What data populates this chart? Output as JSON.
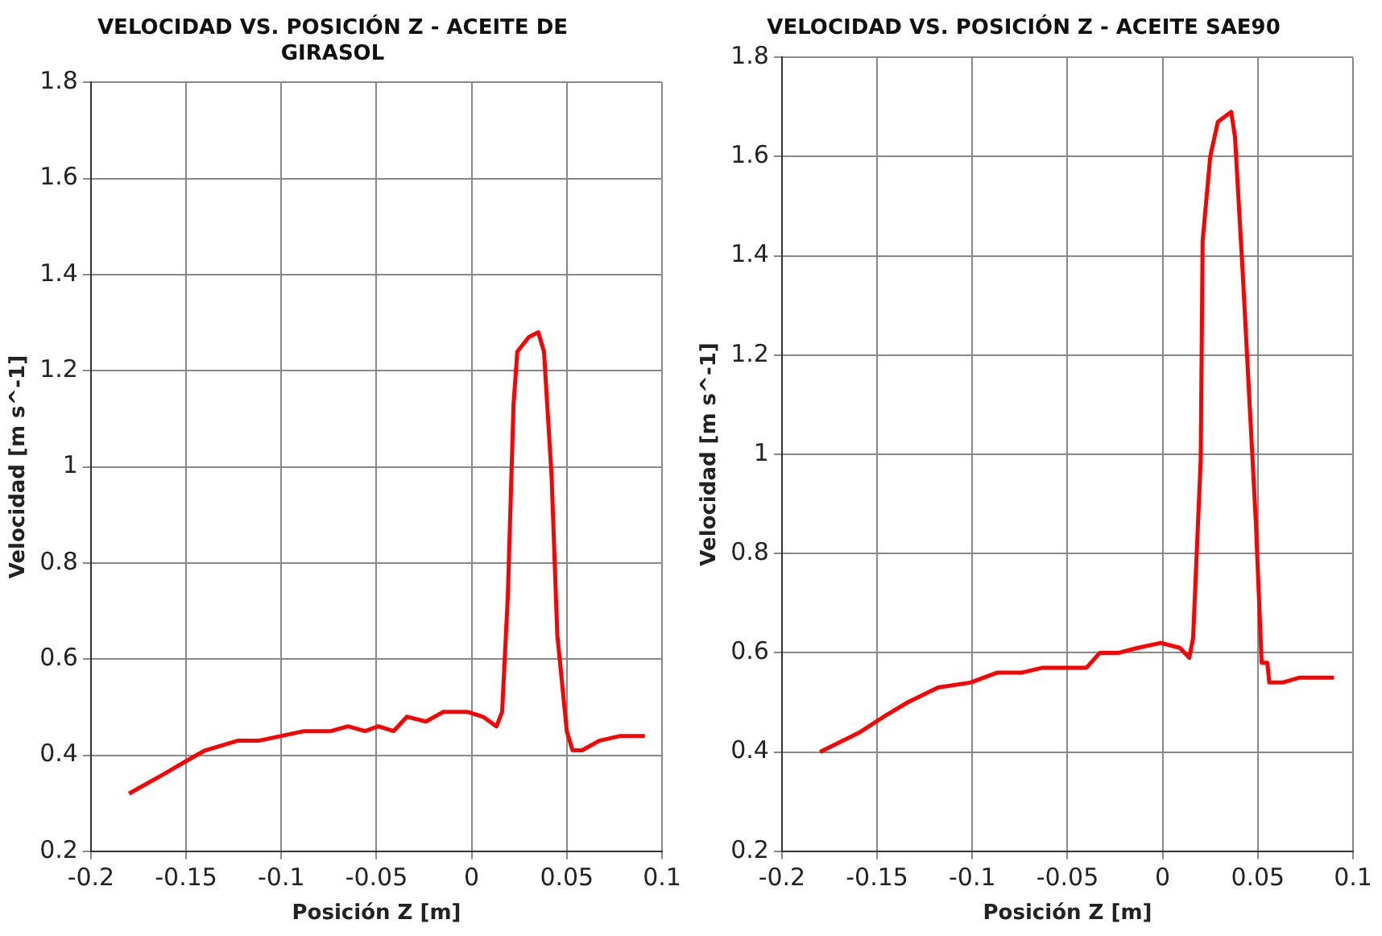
{
  "chart_data": [
    {
      "type": "line",
      "title": "VELOCIDAD VS. POSICIÓN Z - ACEITE DE GIRASOL",
      "xlabel": "Posición Z [m]",
      "ylabel": "Velocidad [m s^-1]",
      "xlim": [
        -0.2,
        0.1
      ],
      "xticks": [
        -0.2,
        -0.15,
        -0.1,
        -0.05,
        0,
        0.05,
        0.1
      ],
      "ylim": [
        0.2,
        1.8
      ],
      "yticks": [
        0.2,
        0.4,
        0.6,
        0.8,
        1,
        1.2,
        1.4,
        1.6,
        1.8
      ],
      "grid": true,
      "marker": "none",
      "legend": false,
      "series": [
        {
          "color": "#ff0000",
          "x": [
            -0.18,
            -0.162,
            -0.149,
            -0.14,
            -0.123,
            -0.112,
            -0.1,
            -0.088,
            -0.074,
            -0.065,
            -0.056,
            -0.049,
            -0.041,
            -0.034,
            -0.024,
            -0.015,
            -0.002,
            0.006,
            0.013,
            0.016,
            0.019,
            0.022,
            0.024,
            0.03,
            0.035,
            0.038,
            0.042,
            0.045,
            0.05,
            0.053,
            0.058,
            0.067,
            0.078,
            0.086,
            0.091
          ],
          "values": [
            0.32,
            0.36,
            0.39,
            0.41,
            0.43,
            0.43,
            0.44,
            0.45,
            0.45,
            0.46,
            0.45,
            0.46,
            0.45,
            0.48,
            0.47,
            0.49,
            0.49,
            0.48,
            0.46,
            0.49,
            0.73,
            1.13,
            1.24,
            1.27,
            1.28,
            1.24,
            0.98,
            0.65,
            0.45,
            0.41,
            0.41,
            0.43,
            0.44,
            0.44,
            0.44
          ]
        }
      ]
    },
    {
      "type": "line",
      "title": "VELOCIDAD VS. POSICIÓN Z - ACEITE SAE90",
      "xlabel": "Posición Z [m]",
      "ylabel": "Velocidad [m s^-1]",
      "xlim": [
        -0.2,
        0.1
      ],
      "xticks": [
        -0.2,
        -0.15,
        -0.1,
        -0.05,
        0,
        0.05,
        0.1
      ],
      "ylim": [
        0.2,
        1.8
      ],
      "yticks": [
        0.2,
        0.4,
        0.6,
        0.8,
        1,
        1.2,
        1.4,
        1.6,
        1.8
      ],
      "grid": true,
      "marker": "none",
      "legend": false,
      "series": [
        {
          "color": "#ff0000",
          "x": [
            -0.18,
            -0.159,
            -0.147,
            -0.134,
            -0.118,
            -0.101,
            -0.087,
            -0.074,
            -0.063,
            -0.053,
            -0.047,
            -0.04,
            -0.033,
            -0.023,
            -0.013,
            -0.001,
            0.009,
            0.014,
            0.016,
            0.02,
            0.021,
            0.025,
            0.029,
            0.036,
            0.038,
            0.042,
            0.049,
            0.052,
            0.055,
            0.056,
            0.063,
            0.072,
            0.082,
            0.09
          ],
          "values": [
            0.4,
            0.44,
            0.47,
            0.5,
            0.53,
            0.54,
            0.56,
            0.56,
            0.57,
            0.57,
            0.57,
            0.57,
            0.6,
            0.6,
            0.61,
            0.62,
            0.61,
            0.59,
            0.63,
            0.99,
            1.43,
            1.6,
            1.67,
            1.69,
            1.64,
            1.37,
            0.86,
            0.58,
            0.58,
            0.54,
            0.54,
            0.55,
            0.55,
            0.55
          ]
        }
      ]
    }
  ]
}
